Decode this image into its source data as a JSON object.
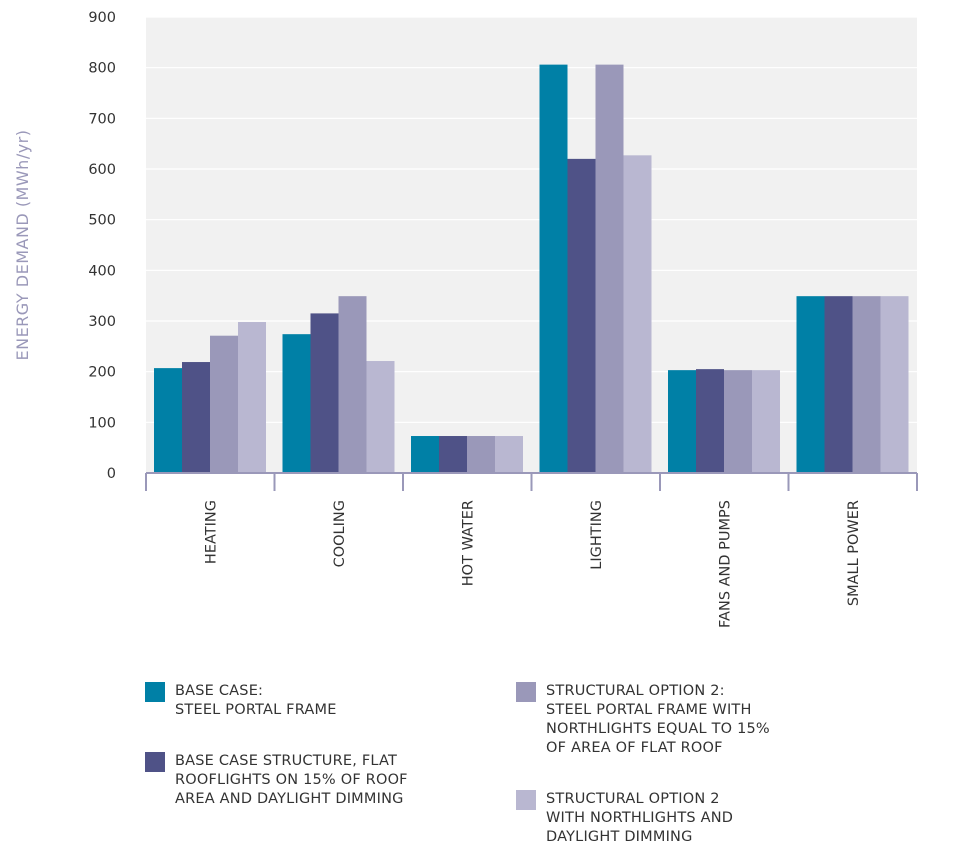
{
  "chart_data": {
    "type": "bar",
    "title": "",
    "xlabel": "",
    "ylabel": "ENERGY DEMAND (MWh/yr)",
    "ylim": [
      0,
      900
    ],
    "yticks": [
      0,
      100,
      200,
      300,
      400,
      500,
      600,
      700,
      800,
      900
    ],
    "grid": true,
    "legend_position": "bottom",
    "categories": [
      "HEATING",
      "COOLING",
      "HOT WATER",
      "LIGHTING",
      "FANS AND PUMPS",
      "SMALL POWER"
    ],
    "series": [
      {
        "name": "BASE CASE: STEEL PORTAL FRAME",
        "color": "#0080a6",
        "values": [
          207,
          274,
          73,
          806,
          203,
          349
        ]
      },
      {
        "name": "BASE CASE STRUCTURE, FLAT ROOFLIGHTS ON 15% OF ROOF AREA AND DAYLIGHT DIMMING",
        "color": "#4f5287",
        "values": [
          219,
          315,
          73,
          620,
          205,
          349
        ]
      },
      {
        "name": "STRUCTURAL OPTION 2: STEEL PORTAL FRAME WITH NORTHLIGHTS EQUAL TO 15% OF AREA OF FLAT ROOF",
        "color": "#9a98b9",
        "values": [
          271,
          349,
          73,
          806,
          203,
          349
        ]
      },
      {
        "name": "STRUCTURAL OPTION 2 WITH NORTHLIGHTS AND DAYLIGHT DIMMING",
        "color": "#b9b7d1",
        "values": [
          298,
          221,
          73,
          627,
          203,
          349
        ]
      }
    ],
    "plot_background": "#f1f1f1",
    "axis_color": "#9a98b9",
    "text_color": "#333333",
    "ylabel_color": "#9a98b9"
  },
  "legend": {
    "items": [
      {
        "lines": [
          "BASE CASE:",
          "STEEL PORTAL FRAME"
        ],
        "color": "#0080a6"
      },
      {
        "lines": [
          "BASE CASE STRUCTURE, FLAT",
          "ROOFLIGHTS ON 15% OF ROOF",
          "AREA AND DAYLIGHT DIMMING"
        ],
        "color": "#4f5287"
      },
      {
        "lines": [
          "STRUCTURAL OPTION 2:",
          "STEEL PORTAL FRAME WITH",
          "NORTHLIGHTS EQUAL TO 15%",
          "OF AREA OF FLAT ROOF"
        ],
        "color": "#9a98b9"
      },
      {
        "lines": [
          "STRUCTURAL OPTION 2",
          "WITH NORTHLIGHTS AND",
          "DAYLIGHT DIMMING"
        ],
        "color": "#b9b7d1"
      }
    ]
  }
}
